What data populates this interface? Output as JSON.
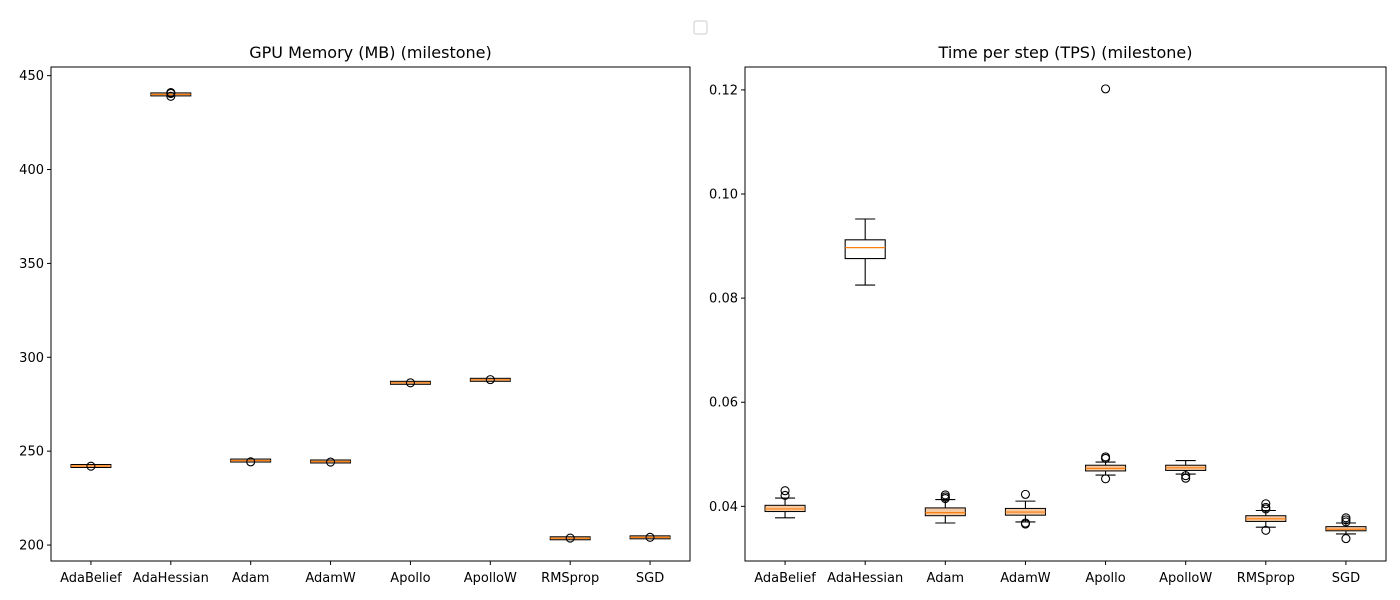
{
  "chart_data": [
    {
      "type": "box",
      "title": "GPU Memory (MB) (milestone)",
      "categories": [
        "AdaBelief",
        "AdaHessian",
        "Adam",
        "AdamW",
        "Apollo",
        "ApolloW",
        "RMSprop",
        "SGD"
      ],
      "ylim": [
        191.5,
        454.6
      ],
      "yticks": [
        200,
        250,
        300,
        350,
        400,
        450
      ],
      "ytick_labels": [
        "200",
        "250",
        "300",
        "350",
        "400",
        "450"
      ],
      "boxes": [
        {
          "q1": 242.0,
          "median": 242.1,
          "q3": 242.2,
          "whislo": 242.0,
          "whishi": 242.2,
          "fliers": [
            242.0
          ]
        },
        {
          "q1": 439.9,
          "median": 440.0,
          "q3": 440.1,
          "whislo": 439.9,
          "whishi": 440.1,
          "fliers": [
            439.0,
            440.5,
            441.0
          ]
        },
        {
          "q1": 244.9,
          "median": 245.0,
          "q3": 245.1,
          "whislo": 244.9,
          "whishi": 245.1,
          "fliers": [
            244.3
          ]
        },
        {
          "q1": 244.4,
          "median": 244.5,
          "q3": 244.6,
          "whislo": 244.4,
          "whishi": 244.6,
          "fliers": [
            244.2
          ]
        },
        {
          "q1": 286.3,
          "median": 286.4,
          "q3": 286.5,
          "whislo": 286.3,
          "whishi": 286.5,
          "fliers": [
            286.4
          ]
        },
        {
          "q1": 287.9,
          "median": 288.0,
          "q3": 288.1,
          "whislo": 287.9,
          "whishi": 288.1,
          "fliers": [
            288.1
          ]
        },
        {
          "q1": 203.5,
          "median": 203.6,
          "q3": 203.7,
          "whislo": 203.5,
          "whishi": 203.7,
          "fliers": [
            203.7
          ]
        },
        {
          "q1": 204.0,
          "median": 204.1,
          "q3": 204.2,
          "whislo": 204.0,
          "whishi": 204.2,
          "fliers": [
            204.1
          ]
        }
      ],
      "grid": false
    },
    {
      "type": "box",
      "title": "Time per step (TPS) (milestone)",
      "categories": [
        "AdaBelief",
        "AdaHessian",
        "Adam",
        "AdamW",
        "Apollo",
        "ApolloW",
        "RMSprop",
        "SGD"
      ],
      "ylim": [
        0.0295,
        0.1244
      ],
      "yticks": [
        0.04,
        0.06,
        0.08,
        0.1,
        0.12
      ],
      "ytick_labels": [
        "0.04",
        "0.06",
        "0.08",
        "0.10",
        "0.12"
      ],
      "boxes": [
        {
          "q1": 0.039,
          "median": 0.0395,
          "q3": 0.0402,
          "whislo": 0.0378,
          "whishi": 0.0416,
          "fliers": [
            0.0421,
            0.043
          ]
        },
        {
          "q1": 0.0876,
          "median": 0.0897,
          "q3": 0.0912,
          "whislo": 0.0825,
          "whishi": 0.0952,
          "fliers": []
        },
        {
          "q1": 0.0382,
          "median": 0.0388,
          "q3": 0.0397,
          "whislo": 0.0368,
          "whishi": 0.0413,
          "fliers": [
            0.0415,
            0.0418,
            0.0422
          ]
        },
        {
          "q1": 0.0383,
          "median": 0.0389,
          "q3": 0.0396,
          "whislo": 0.037,
          "whishi": 0.041,
          "fliers": [
            0.0366,
            0.0368,
            0.0423
          ]
        },
        {
          "q1": 0.0468,
          "median": 0.0473,
          "q3": 0.0479,
          "whislo": 0.046,
          "whishi": 0.0485,
          "fliers": [
            0.0453,
            0.0492,
            0.0495,
            0.1202
          ]
        },
        {
          "q1": 0.0469,
          "median": 0.0474,
          "q3": 0.0479,
          "whislo": 0.0462,
          "whishi": 0.0488,
          "fliers": [
            0.0454,
            0.0459
          ]
        },
        {
          "q1": 0.0371,
          "median": 0.0376,
          "q3": 0.0382,
          "whislo": 0.036,
          "whishi": 0.0392,
          "fliers": [
            0.0354,
            0.0395,
            0.0398,
            0.0405
          ]
        },
        {
          "q1": 0.0353,
          "median": 0.0356,
          "q3": 0.0361,
          "whislo": 0.0347,
          "whishi": 0.0368,
          "fliers": [
            0.0338,
            0.037,
            0.0374,
            0.0378
          ]
        }
      ],
      "grid": false
    }
  ],
  "legend": {
    "placement": "top-center",
    "entries": []
  },
  "colors": {
    "median": "#ff7f0e",
    "box_edge": "#000000",
    "flat_box_fill": "#f5c8a0"
  }
}
